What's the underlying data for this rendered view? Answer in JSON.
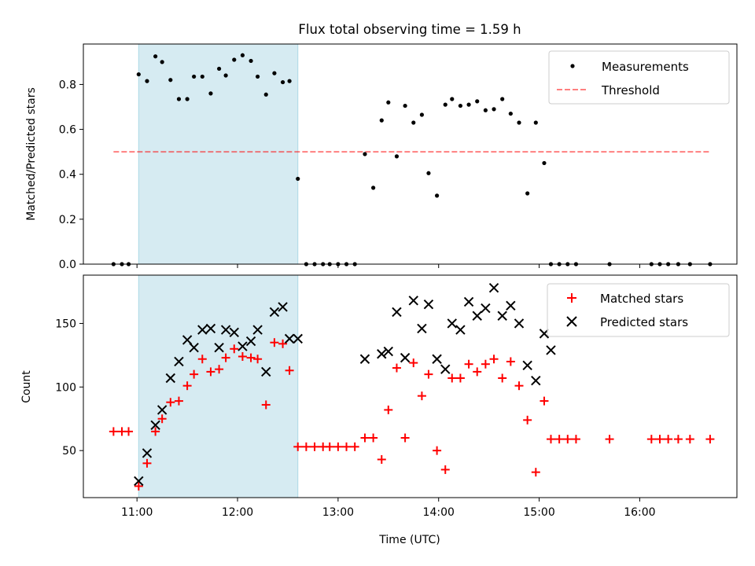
{
  "title": "Flux total observing time = 1.59 h",
  "colors": {
    "span": "#add8e6",
    "threshold": "#ff0000",
    "matched": "#ff0000",
    "predicted": "#000000",
    "measure": "#000000"
  },
  "chart_data": [
    {
      "type": "scatter",
      "panel": "top",
      "ylabel": "Matched/Predicted stars",
      "xlim": [
        "10:28",
        "16:58"
      ],
      "ylim": [
        0,
        0.98
      ],
      "x_ticks": [
        "11:00",
        "12:00",
        "13:00",
        "14:00",
        "15:00",
        "16:00"
      ],
      "y_ticks": [
        "0.0",
        "0.2",
        "0.4",
        "0.6",
        "0.8"
      ],
      "y_tick_values": [
        0,
        0.2,
        0.4,
        0.6,
        0.8
      ],
      "highlight_span": [
        "11:01",
        "12:36"
      ],
      "legend": {
        "position": "upper-right",
        "entries": [
          "Measurements",
          "Threshold"
        ]
      },
      "threshold": {
        "name": "Threshold",
        "y": 0.5,
        "x_range": [
          "10:46",
          "16:42"
        ],
        "style": "dashed"
      },
      "series": [
        {
          "name": "Measurements",
          "x": [
            "10:46",
            "10:51",
            "10:55",
            "11:01",
            "11:06",
            "11:11",
            "11:15",
            "11:20",
            "11:25",
            "11:30",
            "11:34",
            "11:39",
            "11:44",
            "11:49",
            "11:53",
            "11:58",
            "12:03",
            "12:08",
            "12:12",
            "12:17",
            "12:22",
            "12:27",
            "12:31",
            "12:36",
            "12:41",
            "12:46",
            "12:51",
            "12:55",
            "13:00",
            "13:05",
            "13:10",
            "13:16",
            "13:21",
            "13:26",
            "13:30",
            "13:35",
            "13:40",
            "13:45",
            "13:50",
            "13:54",
            "13:59",
            "14:04",
            "14:08",
            "14:13",
            "14:18",
            "14:23",
            "14:28",
            "14:33",
            "14:38",
            "14:43",
            "14:48",
            "14:53",
            "14:58",
            "15:03",
            "15:07",
            "15:12",
            "15:17",
            "15:22",
            "15:42",
            "16:07",
            "16:12",
            "16:17",
            "16:23",
            "16:30",
            "16:42"
          ],
          "y": [
            0,
            0,
            0,
            0.845,
            0.815,
            0.925,
            0.9,
            0.82,
            0.735,
            0.735,
            0.835,
            0.835,
            0.76,
            0.87,
            0.84,
            0.91,
            0.93,
            0.905,
            0.835,
            0.755,
            0.85,
            0.81,
            0.815,
            0.38,
            0,
            0,
            0,
            0,
            0,
            0,
            0,
            0.49,
            0.34,
            0.64,
            0.72,
            0.48,
            0.705,
            0.63,
            0.665,
            0.405,
            0.305,
            0.71,
            0.735,
            0.705,
            0.71,
            0.725,
            0.685,
            0.69,
            0.735,
            0.67,
            0.63,
            0.315,
            0.63,
            0.45,
            0,
            0,
            0,
            0,
            0,
            0,
            0,
            0,
            0,
            0,
            0
          ]
        }
      ]
    },
    {
      "type": "scatter",
      "panel": "bottom",
      "ylabel": "Count",
      "xlabel": "Time (UTC)",
      "xlim": [
        "10:28",
        "16:58"
      ],
      "ylim": [
        13,
        188
      ],
      "x_ticks": [
        "11:00",
        "12:00",
        "13:00",
        "14:00",
        "15:00",
        "16:00"
      ],
      "y_ticks": [
        "50",
        "100",
        "150"
      ],
      "y_tick_values": [
        50,
        100,
        150
      ],
      "highlight_span": [
        "11:01",
        "12:36"
      ],
      "legend": {
        "position": "upper-right",
        "entries": [
          "Matched stars",
          "Predicted stars"
        ]
      },
      "series": [
        {
          "name": "Matched stars",
          "marker": "plus",
          "x": [
            "10:46",
            "10:51",
            "10:55",
            "11:01",
            "11:06",
            "11:11",
            "11:15",
            "11:20",
            "11:25",
            "11:30",
            "11:34",
            "11:39",
            "11:44",
            "11:49",
            "11:53",
            "11:58",
            "12:03",
            "12:08",
            "12:12",
            "12:17",
            "12:22",
            "12:27",
            "12:31",
            "12:36",
            "12:41",
            "12:46",
            "12:51",
            "12:55",
            "13:00",
            "13:05",
            "13:10",
            "13:16",
            "13:21",
            "13:26",
            "13:30",
            "13:35",
            "13:40",
            "13:45",
            "13:50",
            "13:54",
            "13:59",
            "14:04",
            "14:08",
            "14:13",
            "14:18",
            "14:23",
            "14:28",
            "14:33",
            "14:38",
            "14:43",
            "14:48",
            "14:53",
            "14:58",
            "15:03",
            "15:07",
            "15:12",
            "15:17",
            "15:22",
            "15:42",
            "16:07",
            "16:12",
            "16:17",
            "16:23",
            "16:30",
            "16:42"
          ],
          "y": [
            65,
            65,
            65,
            22,
            40,
            65,
            75,
            88,
            89,
            101,
            110,
            122,
            112,
            114,
            123,
            130,
            124,
            123,
            122,
            86,
            135,
            134,
            113,
            53,
            53,
            53,
            53,
            53,
            53,
            53,
            53,
            60,
            60,
            43,
            82,
            115,
            60,
            119,
            93,
            110,
            50,
            35,
            107,
            107,
            118,
            112,
            118,
            122,
            107,
            120,
            101,
            74,
            33,
            89,
            59,
            59,
            59,
            59,
            59,
            59,
            59,
            59,
            59,
            59,
            59
          ]
        },
        {
          "name": "Predicted stars",
          "marker": "x",
          "x": [
            "11:01",
            "11:06",
            "11:11",
            "11:15",
            "11:20",
            "11:25",
            "11:30",
            "11:34",
            "11:39",
            "11:44",
            "11:49",
            "11:53",
            "11:58",
            "12:03",
            "12:08",
            "12:12",
            "12:17",
            "12:22",
            "12:27",
            "12:31",
            "12:36",
            "13:16",
            "13:26",
            "13:30",
            "13:35",
            "13:40",
            "13:45",
            "13:50",
            "13:54",
            "13:59",
            "14:04",
            "14:08",
            "14:13",
            "14:18",
            "14:23",
            "14:28",
            "14:33",
            "14:38",
            "14:43",
            "14:48",
            "14:53",
            "14:58",
            "15:03",
            "15:07"
          ],
          "y": [
            26,
            48,
            70,
            82,
            107,
            120,
            137,
            131,
            145,
            146,
            131,
            145,
            143,
            132,
            136,
            145,
            112,
            159,
            163,
            138,
            138,
            122,
            126,
            128,
            159,
            123,
            168,
            146,
            165,
            122,
            114,
            150,
            145,
            167,
            156,
            162,
            178,
            156,
            164,
            150,
            117,
            105,
            142,
            129
          ]
        }
      ]
    }
  ]
}
